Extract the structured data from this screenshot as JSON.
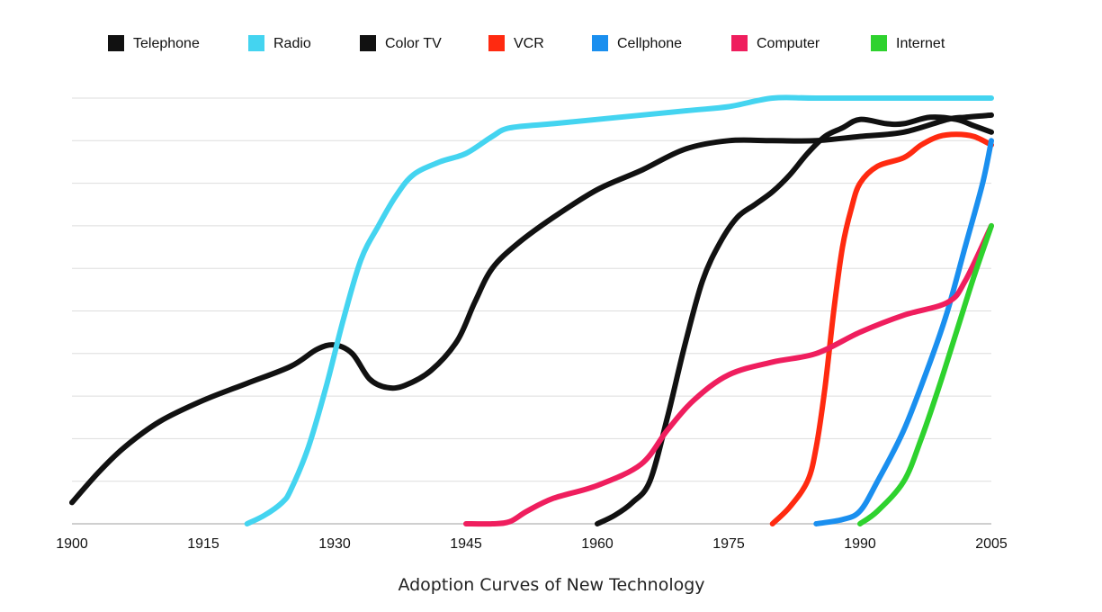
{
  "chart_data": {
    "type": "line",
    "title": "Adoption Curves of New Technology",
    "xlabel": "",
    "ylabel": "",
    "xlim": [
      1900,
      2005
    ],
    "ylim": [
      0,
      100
    ],
    "grid": true,
    "y_gridlines": [
      10,
      20,
      30,
      40,
      50,
      60,
      70,
      80,
      90,
      100
    ],
    "x_ticks": [
      1900,
      1915,
      1930,
      1945,
      1960,
      1975,
      1990,
      2005
    ],
    "legend_position": "top",
    "series": [
      {
        "name": "Telephone",
        "color": "#111111",
        "points": [
          [
            1900,
            5
          ],
          [
            1903,
            12
          ],
          [
            1906,
            18
          ],
          [
            1910,
            24
          ],
          [
            1915,
            29
          ],
          [
            1920,
            33
          ],
          [
            1925,
            37
          ],
          [
            1928,
            41
          ],
          [
            1930,
            42
          ],
          [
            1932,
            40
          ],
          [
            1934,
            34
          ],
          [
            1936,
            32
          ],
          [
            1938,
            32.5
          ],
          [
            1941,
            36
          ],
          [
            1944,
            43
          ],
          [
            1946,
            52
          ],
          [
            1948,
            60
          ],
          [
            1951,
            66
          ],
          [
            1955,
            72
          ],
          [
            1960,
            78.5
          ],
          [
            1965,
            83
          ],
          [
            1970,
            88
          ],
          [
            1975,
            90
          ],
          [
            1980,
            90
          ],
          [
            1985,
            90
          ],
          [
            1990,
            91
          ],
          [
            1995,
            92
          ],
          [
            2000,
            95
          ],
          [
            2002,
            95.5
          ],
          [
            2005,
            96
          ]
        ]
      },
      {
        "name": "Radio",
        "color": "#44d4f0",
        "points": [
          [
            1920,
            0
          ],
          [
            1922,
            2
          ],
          [
            1924,
            5
          ],
          [
            1925,
            8
          ],
          [
            1927,
            18
          ],
          [
            1929,
            32
          ],
          [
            1931,
            48
          ],
          [
            1933,
            62
          ],
          [
            1935,
            70
          ],
          [
            1937,
            77
          ],
          [
            1939,
            82
          ],
          [
            1942,
            85
          ],
          [
            1945,
            87
          ],
          [
            1948,
            91
          ],
          [
            1950,
            93
          ],
          [
            1955,
            94
          ],
          [
            1960,
            95
          ],
          [
            1970,
            97
          ],
          [
            1975,
            98
          ],
          [
            1980,
            100
          ],
          [
            1985,
            100
          ],
          [
            1995,
            100
          ],
          [
            2005,
            100
          ]
        ]
      },
      {
        "name": "Color TV",
        "color": "#111111",
        "points": [
          [
            1960,
            0
          ],
          [
            1962,
            2
          ],
          [
            1964,
            5
          ],
          [
            1966,
            10
          ],
          [
            1968,
            25
          ],
          [
            1970,
            42
          ],
          [
            1972,
            57
          ],
          [
            1974,
            66
          ],
          [
            1976,
            72
          ],
          [
            1978,
            75
          ],
          [
            1980,
            78
          ],
          [
            1982,
            82
          ],
          [
            1984,
            87
          ],
          [
            1986,
            91
          ],
          [
            1988,
            93
          ],
          [
            1990,
            95
          ],
          [
            1993,
            94
          ],
          [
            1995,
            94
          ],
          [
            1998,
            95.5
          ],
          [
            2001,
            95
          ],
          [
            2003,
            93.5
          ],
          [
            2005,
            92
          ]
        ]
      },
      {
        "name": "VCR",
        "color": "#ff2a10",
        "points": [
          [
            1980,
            0
          ],
          [
            1982,
            4
          ],
          [
            1984,
            10
          ],
          [
            1985,
            18
          ],
          [
            1986,
            32
          ],
          [
            1987,
            50
          ],
          [
            1988,
            65
          ],
          [
            1989,
            74
          ],
          [
            1990,
            80
          ],
          [
            1992,
            84
          ],
          [
            1995,
            86
          ],
          [
            1997,
            89
          ],
          [
            1999,
            91
          ],
          [
            2001,
            91.5
          ],
          [
            2003,
            91
          ],
          [
            2005,
            89
          ]
        ]
      },
      {
        "name": "Cellphone",
        "color": "#1a8fef",
        "points": [
          [
            1985,
            0
          ],
          [
            1988,
            1
          ],
          [
            1990,
            3
          ],
          [
            1992,
            10
          ],
          [
            1995,
            22
          ],
          [
            1998,
            38
          ],
          [
            2000,
            50
          ],
          [
            2002,
            65
          ],
          [
            2004,
            80
          ],
          [
            2005,
            90
          ]
        ]
      },
      {
        "name": "Computer",
        "color": "#ef1e5e",
        "points": [
          [
            1945,
            0
          ],
          [
            1948,
            0
          ],
          [
            1950,
            0.5
          ],
          [
            1952,
            3
          ],
          [
            1955,
            6
          ],
          [
            1960,
            9
          ],
          [
            1965,
            14
          ],
          [
            1968,
            22
          ],
          [
            1971,
            29
          ],
          [
            1975,
            35
          ],
          [
            1980,
            38
          ],
          [
            1985,
            40
          ],
          [
            1990,
            45
          ],
          [
            1995,
            49
          ],
          [
            2000,
            52
          ],
          [
            2002,
            57
          ],
          [
            2005,
            70
          ]
        ]
      },
      {
        "name": "Internet",
        "color": "#2ed22e",
        "points": [
          [
            1990,
            0
          ],
          [
            1992,
            3
          ],
          [
            1995,
            10
          ],
          [
            1997,
            20
          ],
          [
            1999,
            32
          ],
          [
            2001,
            45
          ],
          [
            2003,
            58
          ],
          [
            2005,
            70
          ]
        ]
      }
    ]
  }
}
